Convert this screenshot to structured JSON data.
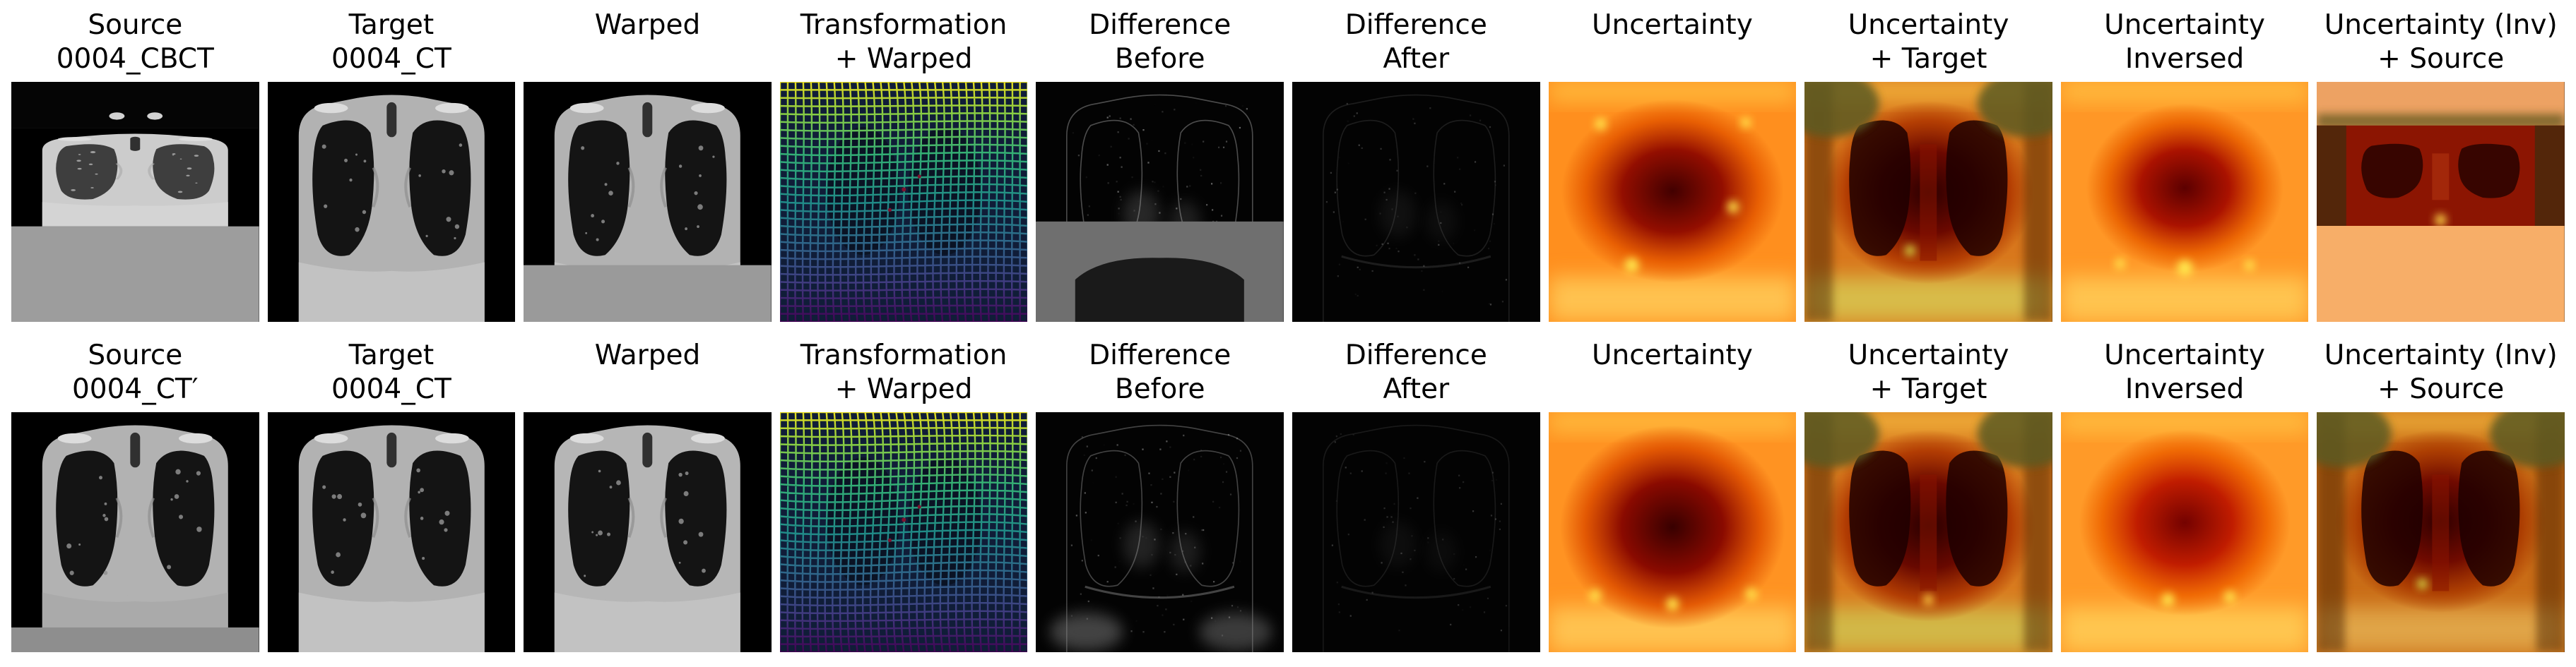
{
  "figure": {
    "background": "#ffffff",
    "title_color": "#000000",
    "palette": {
      "ct_background_black": "#000000",
      "ct_tissue_gray": "#b2b2b2",
      "cbct_padding_gray": "#9d9d9d",
      "heat_dark_red": "#3f0000",
      "heat_red": "#a81200",
      "heat_orange": "#ff8f1e",
      "heat_yellow": "#ffe84d",
      "deform_grid_yellow": "#efe51f",
      "deform_grid_green": "#35b779",
      "deform_grid_teal": "#21918c",
      "deform_grid_blue": "#31688e",
      "deform_grid_purple": "#440154"
    },
    "rows": [
      {
        "label": "row-1",
        "panels": [
          {
            "title": "Source\n0004_CBCT",
            "type": "source-cbct",
            "image_name": "source-cbct-image"
          },
          {
            "title": "Target\n0004_CT",
            "type": "target-ct-1",
            "image_name": "target-ct-image"
          },
          {
            "title": "Warped",
            "type": "warped-1",
            "image_name": "warped-image"
          },
          {
            "title": "Transformation\n+ Warped",
            "type": "transform-1",
            "image_name": "transformation-warped-image"
          },
          {
            "title": "Difference\nBefore",
            "type": "diff-before-1",
            "image_name": "difference-before-image"
          },
          {
            "title": "Difference\nAfter",
            "type": "diff-after-1",
            "image_name": "difference-after-image"
          },
          {
            "title": "Uncertainty",
            "type": "uncertainty-1",
            "image_name": "uncertainty-image"
          },
          {
            "title": "Uncertainty\n+ Target",
            "type": "uncertainty-target-1",
            "image_name": "uncertainty-target-image"
          },
          {
            "title": "Uncertainty\nInversed",
            "type": "uncertainty-inversed-1",
            "image_name": "uncertainty-inversed-image"
          },
          {
            "title": "Uncertainty (Inv)\n+ Source",
            "type": "uncertainty-source-1",
            "image_name": "uncertainty-inv-source-image"
          }
        ]
      },
      {
        "label": "row-2",
        "panels": [
          {
            "title": "Source\n0004_CT′",
            "type": "source-ct2",
            "image_name": "source-ct-image"
          },
          {
            "title": "Target\n0004_CT",
            "type": "target-ct-2",
            "image_name": "target-ct-image"
          },
          {
            "title": "Warped",
            "type": "warped-2",
            "image_name": "warped-image"
          },
          {
            "title": "Transformation\n+ Warped",
            "type": "transform-2",
            "image_name": "transformation-warped-image"
          },
          {
            "title": "Difference\nBefore",
            "type": "diff-before-2",
            "image_name": "difference-before-image"
          },
          {
            "title": "Difference\nAfter",
            "type": "diff-after-2",
            "image_name": "difference-after-image"
          },
          {
            "title": "Uncertainty",
            "type": "uncertainty-2",
            "image_name": "uncertainty-image"
          },
          {
            "title": "Uncertainty\n+ Target",
            "type": "uncertainty-target-2",
            "image_name": "uncertainty-target-image"
          },
          {
            "title": "Uncertainty\nInversed",
            "type": "uncertainty-inversed-2",
            "image_name": "uncertainty-inversed-image"
          },
          {
            "title": "Uncertainty (Inv)\n+ Source",
            "type": "uncertainty-source-2",
            "image_name": "uncertainty-inv-source-image"
          }
        ]
      }
    ]
  }
}
